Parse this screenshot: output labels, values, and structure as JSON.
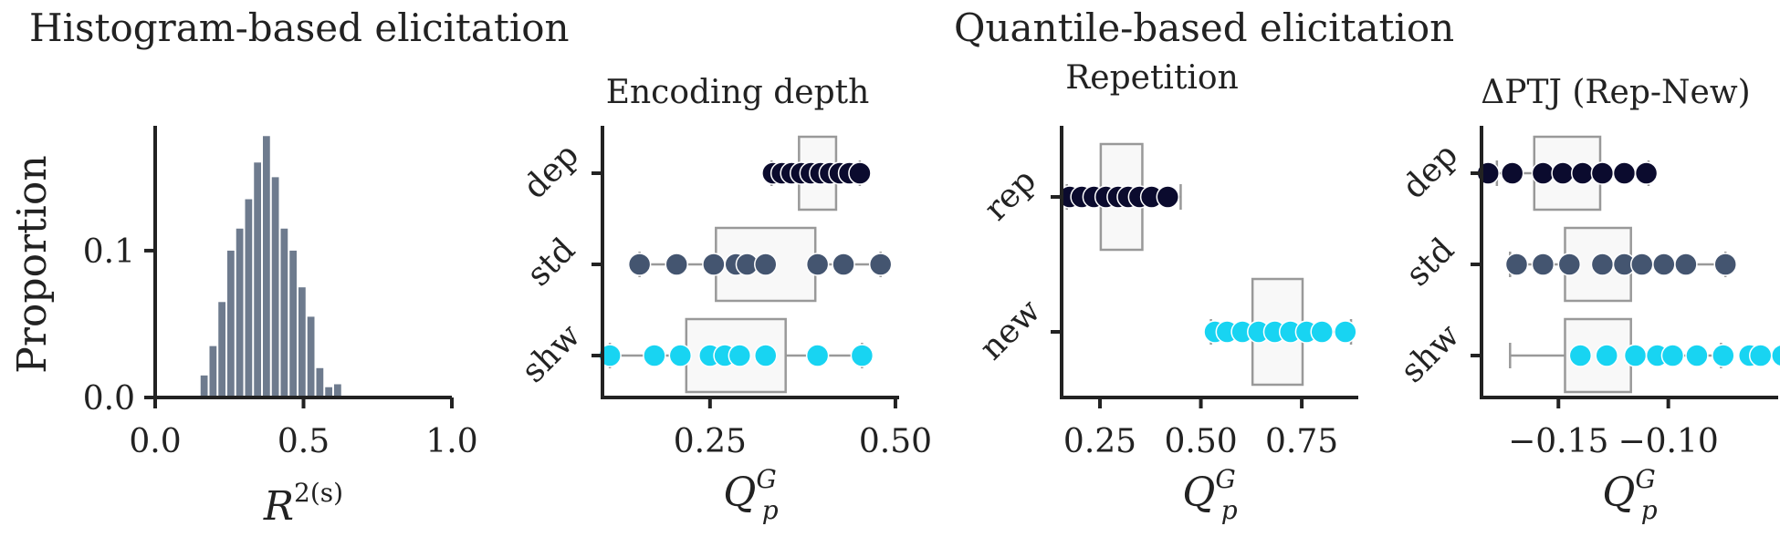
{
  "section_titles": {
    "histogram": "Histogram-based elicitation",
    "quantile": "Quantile-based elicitation"
  },
  "colors": {
    "bar": "#6e7b8e",
    "dep": "#0b0b2e",
    "std": "#445570",
    "shw": "#18d4f2",
    "box_edge": "#999999",
    "box_fill": "#f8f8f8"
  },
  "chart_data": [
    {
      "type": "bar",
      "panel": "histogram",
      "xlabel": "R^{2(s)}",
      "ylabel": "Proportion",
      "xlim": [
        0.0,
        1.0
      ],
      "ylim": [
        0.0,
        0.185
      ],
      "xticks": [
        0.0,
        0.5,
        1.0
      ],
      "xtick_labels": [
        "0.0",
        "0.5",
        "1.0"
      ],
      "yticks": [
        0.0,
        0.1
      ],
      "ytick_labels": [
        "0.0",
        "0.1"
      ],
      "bin_width": 0.03,
      "bin_starts": [
        0.15,
        0.18,
        0.21,
        0.24,
        0.27,
        0.3,
        0.33,
        0.36,
        0.39,
        0.42,
        0.45,
        0.48,
        0.51,
        0.54,
        0.57,
        0.6
      ],
      "values": [
        0.015,
        0.035,
        0.065,
        0.1,
        0.115,
        0.135,
        0.16,
        0.178,
        0.15,
        0.115,
        0.1,
        0.075,
        0.055,
        0.02,
        0.007,
        0.009
      ]
    },
    {
      "type": "scatter",
      "panel": "encoding-depth",
      "title": "Encoding depth",
      "xlabel": "Q_p^G",
      "categories": [
        "dep",
        "std",
        "shw"
      ],
      "xlim": [
        0.105,
        0.505
      ],
      "xticks": [
        0.25,
        0.5
      ],
      "xtick_labels": [
        "0.25",
        "0.50"
      ],
      "series": [
        {
          "name": "dep",
          "color_key": "dep",
          "values": [
            0.335,
            0.347,
            0.36,
            0.373,
            0.386,
            0.399,
            0.412,
            0.425,
            0.438,
            0.452
          ],
          "box": {
            "whislo": 0.333,
            "q1": 0.37,
            "q3": 0.42,
            "whishi": 0.452
          }
        },
        {
          "name": "std",
          "color_key": "std",
          "values": [
            0.155,
            0.205,
            0.255,
            0.285,
            0.3,
            0.325,
            0.395,
            0.43,
            0.48
          ],
          "box": {
            "whislo": 0.155,
            "q1": 0.258,
            "q3": 0.392,
            "whishi": 0.48
          }
        },
        {
          "name": "shw",
          "color_key": "shw",
          "values": [
            0.115,
            0.175,
            0.21,
            0.25,
            0.27,
            0.29,
            0.325,
            0.395,
            0.455
          ],
          "box": {
            "whislo": 0.115,
            "q1": 0.218,
            "q3": 0.352,
            "whishi": 0.455
          }
        }
      ]
    },
    {
      "type": "scatter",
      "panel": "repetition",
      "title": "Repetition",
      "xlabel": "Q_p^G",
      "categories": [
        "rep",
        "new"
      ],
      "xlim": [
        0.155,
        0.89
      ],
      "xticks": [
        0.25,
        0.5,
        0.75
      ],
      "xtick_labels": [
        "0.25",
        "0.50",
        "0.75"
      ],
      "series": [
        {
          "name": "rep",
          "color_key": "dep",
          "values": [
            0.175,
            0.205,
            0.235,
            0.265,
            0.295,
            0.32,
            0.348,
            0.378,
            0.418
          ],
          "box": {
            "whislo": 0.168,
            "q1": 0.252,
            "q3": 0.355,
            "whishi": 0.45
          }
        },
        {
          "name": "new",
          "color_key": "shw",
          "values": [
            0.535,
            0.565,
            0.603,
            0.643,
            0.683,
            0.722,
            0.762,
            0.8,
            0.858
          ],
          "box": {
            "whislo": 0.525,
            "q1": 0.628,
            "q3": 0.752,
            "whishi": 0.872
          }
        }
      ]
    },
    {
      "type": "scatter",
      "panel": "delta-ptj",
      "title": "ΔPTJ (Rep-New)",
      "xlabel": "Q_p^G",
      "categories": [
        "dep",
        "std",
        "shw"
      ],
      "xlim": [
        -0.185,
        -0.05
      ],
      "xticks": [
        -0.15,
        -0.1
      ],
      "xtick_labels": [
        "−0.15",
        "−0.10"
      ],
      "series": [
        {
          "name": "dep",
          "color_key": "dep",
          "values": [
            -0.182,
            -0.171,
            -0.157,
            -0.148,
            -0.139,
            -0.13,
            -0.12,
            -0.11
          ],
          "box": {
            "whislo": -0.178,
            "q1": -0.161,
            "q3": -0.131,
            "whishi": -0.109
          }
        },
        {
          "name": "std",
          "color_key": "std",
          "values": [
            -0.169,
            -0.157,
            -0.145,
            -0.13,
            -0.12,
            -0.112,
            -0.102,
            -0.092,
            -0.074
          ],
          "box": {
            "whislo": -0.172,
            "q1": -0.147,
            "q3": -0.117,
            "whishi": -0.074
          }
        },
        {
          "name": "shw",
          "color_key": "shw",
          "values": [
            -0.14,
            -0.128,
            -0.115,
            -0.105,
            -0.098,
            -0.087,
            -0.075,
            -0.063,
            -0.058,
            -0.048
          ],
          "box": {
            "whislo": -0.172,
            "q1": -0.147,
            "q3": -0.117,
            "whishi": -0.076
          }
        }
      ]
    }
  ]
}
